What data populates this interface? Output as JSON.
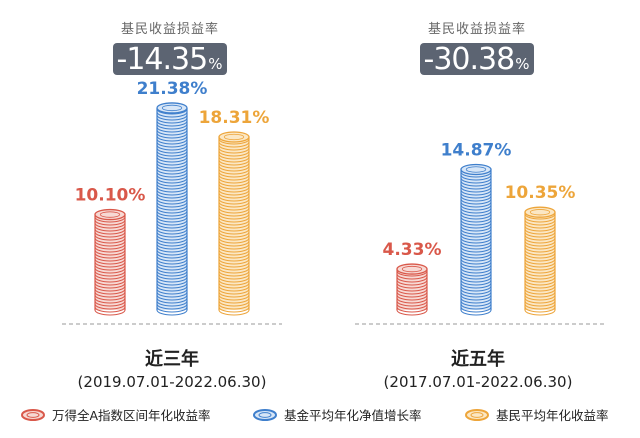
{
  "chart_data": [
    {
      "type": "bar",
      "group_name": "近三年",
      "period": "(2019.07.01-2022.06.30)",
      "header_title": "基民收益损益率",
      "header_value": "-14.35",
      "header_unit": "%",
      "series": [
        {
          "name": "万得全A指数区间年化收益率",
          "value": 10.1,
          "label": "10.10%"
        },
        {
          "name": "基金平均年化净值增长率",
          "value": 21.38,
          "label": "21.38%"
        },
        {
          "name": "基民平均年化收益率",
          "value": 18.31,
          "label": "18.31%"
        }
      ]
    },
    {
      "type": "bar",
      "group_name": "近五年",
      "period": "(2017.07.01-2022.06.30)",
      "header_title": "基民收益损益率",
      "header_value": "-30.38",
      "header_unit": "%",
      "series": [
        {
          "name": "万得全A指数区间年化收益率",
          "value": 4.33,
          "label": "4.33%"
        },
        {
          "name": "基金平均年化净值增长率",
          "value": 14.87,
          "label": "14.87%"
        },
        {
          "name": "基民平均年化收益率",
          "value": 10.35,
          "label": "10.35%"
        }
      ]
    }
  ],
  "legend": [
    {
      "label": "万得全A指数区间年化收益率",
      "color": "#d9584a"
    },
    {
      "label": "基金平均年化净值增长率",
      "color": "#3f7fcc"
    },
    {
      "label": "基民平均年化收益率",
      "color": "#eda53a"
    }
  ],
  "colors": {
    "red": "#d9584a",
    "red_light": "#f7d9d4",
    "blue": "#3f7fcc",
    "blue_light": "#d7e6f7",
    "orange": "#eda53a",
    "orange_light": "#fbe7c4"
  }
}
